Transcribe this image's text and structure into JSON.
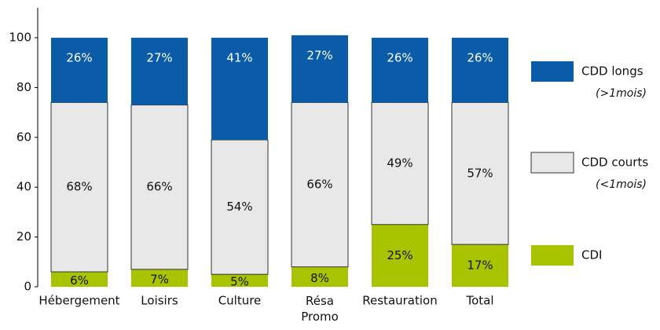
{
  "chart_data": {
    "type": "stacked_bar",
    "categories": [
      "Hébergement",
      "Loisirs",
      "Culture",
      "Résa Promo",
      "Restauration",
      "Total"
    ],
    "series": [
      {
        "name": "CDI",
        "color": "#a8c400",
        "values": [
          6,
          7,
          5,
          8,
          25,
          17
        ],
        "value_labels": [
          "6%",
          "7%",
          "5%",
          "8%",
          "25%",
          "17%"
        ]
      },
      {
        "name": "CDD courts",
        "note": "(<1mois)",
        "color": "#e8e8e8",
        "values": [
          68,
          66,
          54,
          66,
          49,
          57
        ],
        "value_labels": [
          "68%",
          "66%",
          "54%",
          "66%",
          "49%",
          "57%"
        ]
      },
      {
        "name": "CDD longs",
        "note": "(>1mois)",
        "color": "#0a5ca8",
        "values": [
          26,
          27,
          41,
          27,
          26,
          26
        ],
        "value_labels": [
          "26%",
          "27%",
          "41%",
          "27%",
          "26%",
          "26%"
        ]
      }
    ],
    "ylim": [
      0,
      112
    ],
    "yticks": [
      0,
      20,
      40,
      60,
      80,
      100
    ],
    "grid": false
  }
}
